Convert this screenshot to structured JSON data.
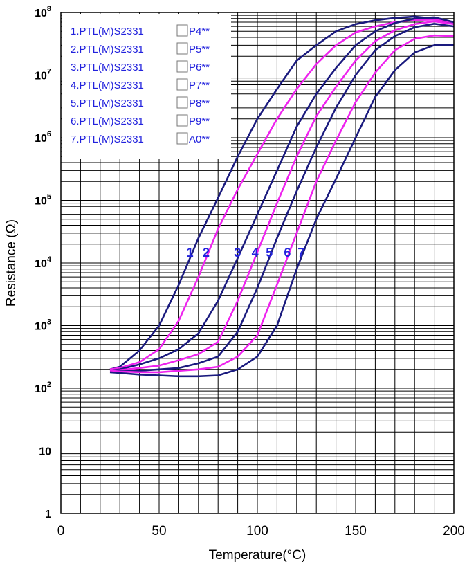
{
  "chart_data": {
    "type": "line",
    "xlabel": "Temperature(°C)",
    "ylabel": "Resistance (Ω)",
    "xlim": [
      0,
      200
    ],
    "ylim": [
      1,
      100000000
    ],
    "y_scale": "log",
    "grid": true,
    "x_ticks": [
      "0",
      "50",
      "100",
      "150",
      "200"
    ],
    "y_ticks": [
      {
        "base": "1",
        "exp": ""
      },
      {
        "base": "10",
        "exp": ""
      },
      {
        "base": "10",
        "exp": "2"
      },
      {
        "base": "10",
        "exp": "3"
      },
      {
        "base": "10",
        "exp": "4"
      },
      {
        "base": "10",
        "exp": "5"
      },
      {
        "base": "10",
        "exp": "6"
      },
      {
        "base": "10",
        "exp": "7"
      },
      {
        "base": "10",
        "exp": "8"
      }
    ],
    "legend_position": "top-left",
    "legend": [
      {
        "text": "1.PTL(M)S2331",
        "suffix": "P4**"
      },
      {
        "text": "2.PTL(M)S2331",
        "suffix": "P5**"
      },
      {
        "text": "3.PTL(M)S2331",
        "suffix": "P6**"
      },
      {
        "text": "4.PTL(M)S2331",
        "suffix": "P7**"
      },
      {
        "text": "5.PTL(M)S2331",
        "suffix": "P8**"
      },
      {
        "text": "6.PTL(M)S2331",
        "suffix": "P9**"
      },
      {
        "text": "7.PTL(M)S2331",
        "suffix": "A0**"
      }
    ],
    "colors": {
      "navy": "#1a1a7e",
      "magenta": "#ee22ee",
      "legend_text": "#2222dd",
      "label_text": "#2222dd"
    },
    "series": [
      {
        "label": "1",
        "color": "navy",
        "x": [
          25,
          30,
          40,
          50,
          60,
          70,
          80,
          90,
          100,
          110,
          120,
          130,
          140,
          150,
          160,
          170,
          180,
          190,
          200
        ],
        "y": [
          200,
          220,
          400,
          1000,
          4500,
          25000,
          110000,
          500000,
          2000000,
          6000000,
          17000000,
          30000000,
          50000000,
          65000000,
          75000000,
          82000000,
          86000000,
          80000000,
          65000000
        ]
      },
      {
        "label": "2",
        "color": "magenta",
        "x": [
          25,
          30,
          40,
          50,
          60,
          70,
          80,
          90,
          100,
          110,
          120,
          130,
          140,
          150,
          160,
          170,
          180,
          190,
          200
        ],
        "y": [
          200,
          210,
          260,
          420,
          1200,
          6000,
          35000,
          150000,
          550000,
          2000000,
          6000000,
          15000000,
          30000000,
          48000000,
          60000000,
          70000000,
          76000000,
          77000000,
          70000000
        ]
      },
      {
        "label": "3",
        "color": "navy",
        "x": [
          25,
          30,
          40,
          50,
          60,
          70,
          80,
          90,
          100,
          110,
          120,
          130,
          140,
          150,
          160,
          170,
          180,
          190,
          200
        ],
        "y": [
          190,
          200,
          240,
          300,
          420,
          750,
          2500,
          12000,
          60000,
          300000,
          1500000,
          5000000,
          13000000,
          30000000,
          50000000,
          68000000,
          80000000,
          84000000,
          70000000
        ]
      },
      {
        "label": "4",
        "color": "magenta",
        "x": [
          25,
          30,
          40,
          50,
          60,
          70,
          80,
          90,
          100,
          110,
          120,
          130,
          140,
          150,
          160,
          170,
          180,
          190,
          200
        ],
        "y": [
          190,
          195,
          210,
          230,
          280,
          350,
          550,
          2500,
          15000,
          90000,
          500000,
          2200000,
          6500000,
          17000000,
          35000000,
          52000000,
          65000000,
          72000000,
          65000000
        ]
      },
      {
        "label": "5",
        "color": "navy",
        "x": [
          25,
          30,
          40,
          50,
          60,
          70,
          80,
          90,
          100,
          110,
          120,
          130,
          140,
          150,
          160,
          170,
          180,
          190,
          200
        ],
        "y": [
          190,
          190,
          190,
          200,
          210,
          250,
          320,
          800,
          4000,
          25000,
          140000,
          700000,
          3000000,
          10000000,
          25000000,
          42000000,
          58000000,
          66000000,
          60000000
        ]
      },
      {
        "label": "6",
        "color": "magenta",
        "x": [
          25,
          30,
          40,
          50,
          60,
          70,
          80,
          90,
          100,
          110,
          120,
          130,
          140,
          150,
          160,
          170,
          180,
          190,
          200
        ],
        "y": [
          190,
          185,
          180,
          180,
          190,
          200,
          220,
          320,
          700,
          4500,
          30000,
          200000,
          900000,
          3700000,
          11000000,
          25000000,
          38000000,
          43000000,
          42000000
        ]
      },
      {
        "label": "7",
        "color": "navy",
        "x": [
          25,
          30,
          40,
          50,
          60,
          70,
          80,
          90,
          100,
          110,
          120,
          130,
          140,
          150,
          160,
          170,
          180,
          190,
          200
        ],
        "y": [
          180,
          175,
          165,
          160,
          155,
          155,
          160,
          200,
          320,
          1000,
          8000,
          50000,
          220000,
          1000000,
          4500000,
          12000000,
          23000000,
          30000000,
          30000000
        ]
      }
    ]
  }
}
